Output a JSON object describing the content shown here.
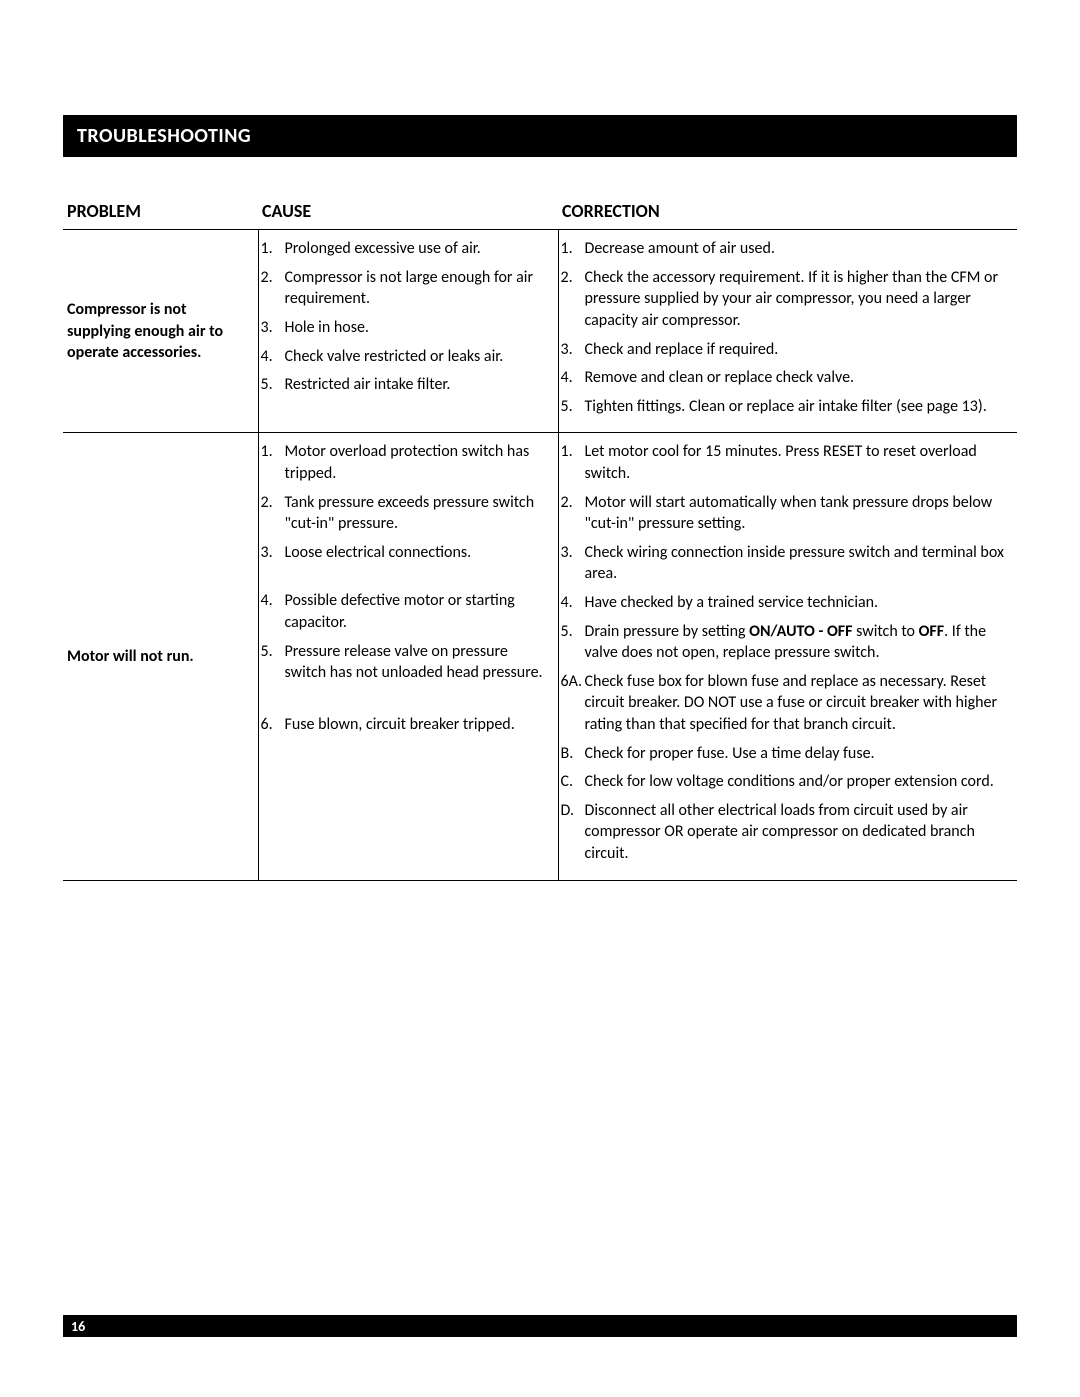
{
  "sectionTitle": "TROUBLESHOOTING",
  "pageNumber": "16",
  "columns": {
    "problem": "PROBLEM",
    "cause": "CAUSE",
    "correction": "CORRECTION"
  },
  "rows": [
    {
      "problem": "Compressor is not supplying enough air to operate accessories.",
      "causes": [
        {
          "n": "1.",
          "t": "Prolonged excessive use of air."
        },
        {
          "n": "2.",
          "t": "Compressor is not large enough for air requirement."
        },
        {
          "n": "3.",
          "t": "Hole in hose."
        },
        {
          "n": "4.",
          "t": "Check valve restricted or leaks air."
        },
        {
          "n": "5.",
          "t": "Restricted air intake filter."
        }
      ],
      "corrections": [
        {
          "n": "1.",
          "t": "Decrease amount of air used."
        },
        {
          "n": "2.",
          "t": "Check the accessory requirement. If it is higher than the CFM or pressure supplied by your air compressor, you need a larger capacity air compressor."
        },
        {
          "n": "3.",
          "t": "Check and replace if required."
        },
        {
          "n": "4.",
          "t": "Remove and clean or replace check valve."
        },
        {
          "n": "5.",
          "t": "Tighten fittings. Clean or replace air intake filter (see page 13)."
        }
      ]
    },
    {
      "problem": "Motor will not run.",
      "causes": [
        {
          "n": "1.",
          "t": "Motor overload protection switch has tripped."
        },
        {
          "n": "2.",
          "t": "Tank pressure exceeds pressure switch \"cut-in\" pressure."
        },
        {
          "n": "3.",
          "t": "Loose electrical connections."
        },
        {
          "n": "4.",
          "t": "Possible defective motor or starting capacitor."
        },
        {
          "n": "5.",
          "t": "Pressure release valve on pressure switch has not unloaded head pressure."
        },
        {
          "n": "6.",
          "t": "Fuse blown, circuit breaker tripped."
        }
      ],
      "corrections": [
        {
          "n": "1.",
          "t": "Let motor cool for 15 minutes. Press RESET to reset overload switch."
        },
        {
          "n": "2.",
          "t": "Motor will start automatically when tank pressure drops below \"cut-in\" pressure setting."
        },
        {
          "n": "3.",
          "t": "Check wiring connection inside pressure switch and terminal box area."
        },
        {
          "n": "4.",
          "t": "Have checked by a trained service technician."
        },
        {
          "n": "5.",
          "html": "Drain pressure by setting <b>ON/AUTO - OFF</b> switch to <b>OFF</b>. If the valve does not open, replace pressure switch."
        },
        {
          "n": "6A.",
          "t": "Check fuse box for blown fuse and replace as necessary. Reset circuit breaker. DO NOT use a fuse or circuit breaker with higher rating than that specified for that branch circuit.",
          "subs": [
            {
              "n": "B.",
              "t": "Check for proper fuse. Use a time delay fuse."
            },
            {
              "n": "C.",
              "t": "Check for low voltage conditions and/or proper extension cord."
            },
            {
              "n": "D.",
              "t": "Disconnect all other electrical loads from circuit used by air compressor OR operate air compressor on dedicated branch circuit."
            }
          ]
        }
      ]
    }
  ],
  "causeSpacing": {
    "1": [
      0,
      0,
      20,
      0,
      23,
      68
    ]
  },
  "correctionSpacing": {
    "1": [
      0,
      0,
      0,
      0,
      0,
      0
    ]
  }
}
